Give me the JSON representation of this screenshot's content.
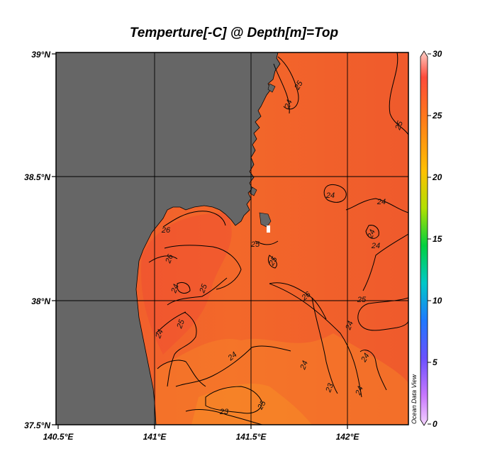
{
  "title": "Temperture[-C] @ Depth[m]=Top",
  "map": {
    "x_ticks": [
      "140.5°E",
      "141°E",
      "141.5°E",
      "142°E"
    ],
    "y_ticks": [
      "39°N",
      "38.5°N",
      "38°N",
      "37.5°N"
    ],
    "contours": [
      "25",
      "24",
      "25",
      "24",
      "24",
      "24",
      "24",
      "26",
      "26",
      "25",
      "25",
      "26",
      "25",
      "24",
      "25",
      "24",
      "25",
      "24",
      "24",
      "24",
      "24",
      "24",
      "23",
      "23",
      "25"
    ],
    "land_color": "#666666",
    "sea_color": "#f26a2a"
  },
  "colorbar": {
    "ticks": [
      "30",
      "25",
      "20",
      "15",
      "10",
      "5",
      "0"
    ],
    "colors": [
      "#ffc8c0",
      "#ff5a3c",
      "#ff7a1e",
      "#ffc400",
      "#a8e000",
      "#00d44a",
      "#00c8c0",
      "#1e7cff",
      "#6a4cff",
      "#c070ff",
      "#f0c8ff"
    ]
  },
  "watermark": "Ocean Data View"
}
